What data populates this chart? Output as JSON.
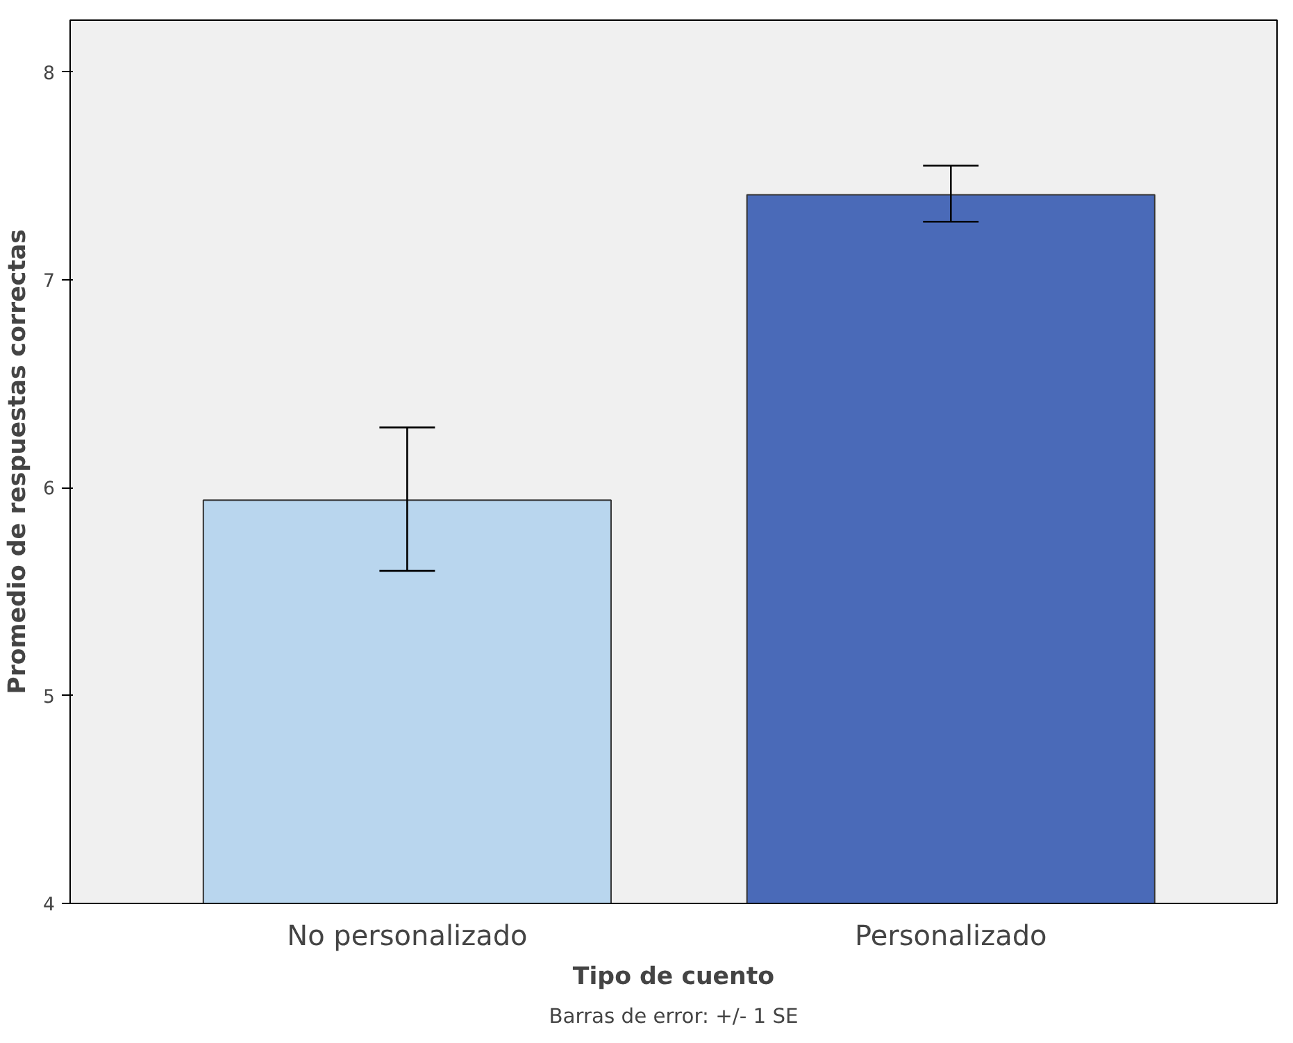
{
  "chart_data": {
    "type": "bar",
    "categories": [
      "No personalizado",
      "Personalizado"
    ],
    "values": [
      5.94,
      7.41
    ],
    "colors": [
      "#b9d6ee",
      "#4a6ab8"
    ],
    "errors": [
      [
        5.6,
        6.29
      ],
      [
        7.28,
        7.55
      ]
    ],
    "xlabel": "Tipo de cuento",
    "ylabel": "Promedio de respuestas correctas",
    "ylim": [
      4,
      8.25
    ],
    "yticks": [
      4,
      5,
      6,
      7,
      8
    ],
    "grid": false,
    "annotations": [
      "Barras de error: +/- 1 SE"
    ]
  }
}
